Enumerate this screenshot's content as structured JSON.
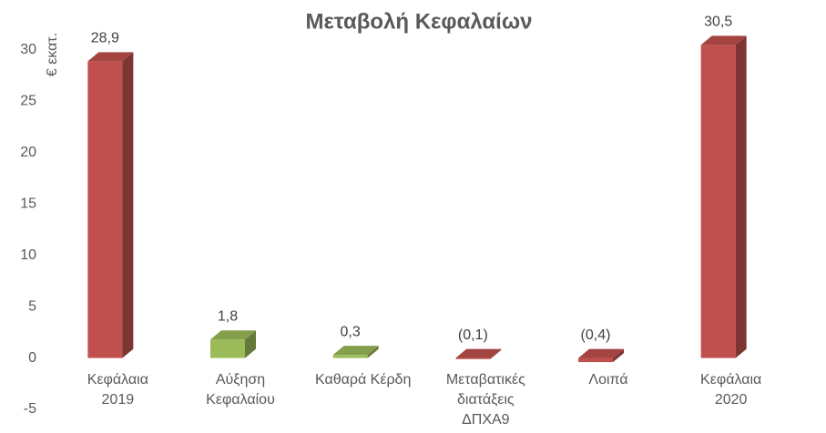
{
  "chart_data": {
    "type": "bar3d",
    "title": "Μεταβολή Κεφαλαίων",
    "y_label": "€ εκατ.",
    "categories": [
      [
        "Κεφάλαια",
        "2019"
      ],
      [
        "Αύξηση",
        "Κεφαλαίου"
      ],
      [
        "Καθαρά Κέρδη"
      ],
      [
        "Μεταβατικές",
        "διατάξεις",
        "ΔΠΧΑ9"
      ],
      [
        "Λοιπά"
      ],
      [
        "Κεφάλαια",
        "2020"
      ]
    ],
    "values": [
      28.9,
      1.8,
      0.3,
      -0.1,
      -0.4,
      30.5
    ],
    "value_labels": [
      "28,9",
      "1,8",
      "0,3",
      "(0,1)",
      "(0,4)",
      "30,5"
    ],
    "colors": [
      "#c0504d",
      "#9bbb59",
      "#9bbb59",
      "#c0504d",
      "#c0504d",
      "#c0504d"
    ],
    "ylim": [
      -5,
      30
    ],
    "yticks": [
      -5,
      0,
      5,
      10,
      15,
      20,
      25,
      30
    ],
    "grid": false
  }
}
